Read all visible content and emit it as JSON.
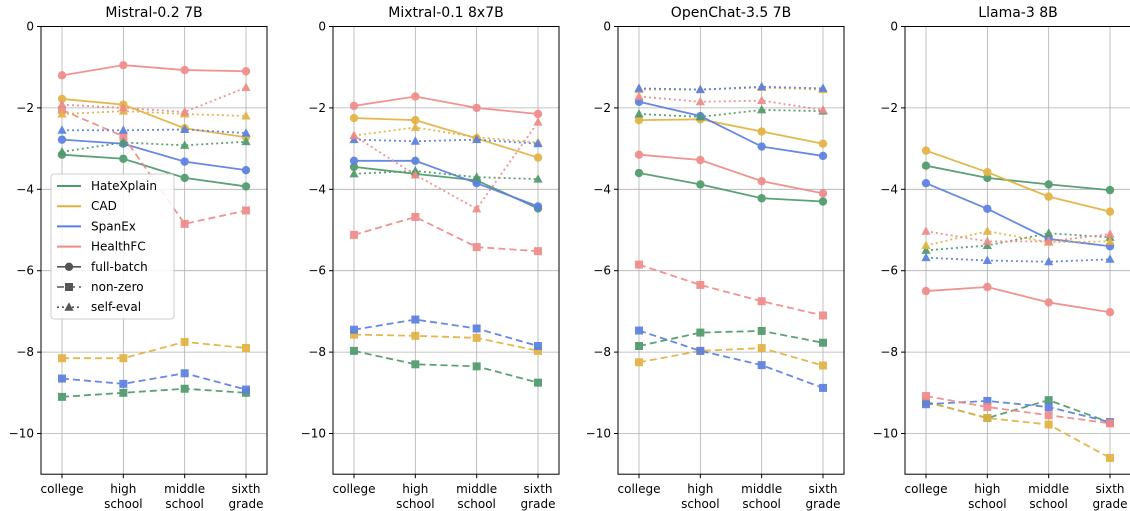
{
  "categories": [
    "college",
    "high\nschool",
    "middle\nschool",
    "sixth\ngrade"
  ],
  "series_colors": {
    "HateXplain": "#4f9a6b",
    "CAD": "#e2b23f",
    "SpanEx": "#5b7fe0",
    "HealthFC": "#ef8a88"
  },
  "legend": {
    "datasets": [
      "HateXplain",
      "CAD",
      "SpanEx",
      "HealthFC"
    ],
    "styles": [
      {
        "label": "full-batch",
        "marker": "circle",
        "dash": "solid"
      },
      {
        "label": "non-zero",
        "marker": "square",
        "dash": "dashed"
      },
      {
        "label": "self-eval",
        "marker": "triangle",
        "dash": "dotted"
      }
    ],
    "placement": "center-left of first panel"
  },
  "chart_data": [
    {
      "type": "line",
      "title": "Mistral-0.2 7B",
      "ylim": [
        -11,
        0
      ],
      "yticks": [
        0,
        -2,
        -4,
        -6,
        -8,
        -10
      ],
      "grid": true,
      "series": [
        {
          "dataset": "HateXplain",
          "style": "full-batch",
          "values": [
            -3.15,
            -3.25,
            -3.72,
            -3.93
          ]
        },
        {
          "dataset": "CAD",
          "style": "full-batch",
          "values": [
            -1.78,
            -1.92,
            -2.5,
            -2.72
          ]
        },
        {
          "dataset": "SpanEx",
          "style": "full-batch",
          "values": [
            -2.78,
            -2.88,
            -3.32,
            -3.53
          ]
        },
        {
          "dataset": "HealthFC",
          "style": "full-batch",
          "values": [
            -1.2,
            -0.95,
            -1.07,
            -1.1
          ]
        },
        {
          "dataset": "HateXplain",
          "style": "non-zero",
          "values": [
            -9.1,
            -9.0,
            -8.9,
            -9.0
          ]
        },
        {
          "dataset": "CAD",
          "style": "non-zero",
          "values": [
            -8.15,
            -8.15,
            -7.75,
            -7.9
          ]
        },
        {
          "dataset": "SpanEx",
          "style": "non-zero",
          "values": [
            -8.65,
            -8.78,
            -8.52,
            -8.92
          ]
        },
        {
          "dataset": "HealthFC",
          "style": "non-zero",
          "values": [
            -2.05,
            -2.7,
            -4.85,
            -4.52
          ]
        },
        {
          "dataset": "HateXplain",
          "style": "self-eval",
          "values": [
            -3.08,
            -2.85,
            -2.92,
            -2.83
          ]
        },
        {
          "dataset": "CAD",
          "style": "self-eval",
          "values": [
            -2.15,
            -2.08,
            -2.15,
            -2.2
          ]
        },
        {
          "dataset": "SpanEx",
          "style": "self-eval",
          "values": [
            -2.55,
            -2.55,
            -2.53,
            -2.62
          ]
        },
        {
          "dataset": "HealthFC",
          "style": "self-eval",
          "values": [
            -1.92,
            -2.0,
            -2.1,
            -1.5
          ]
        }
      ]
    },
    {
      "type": "line",
      "title": "Mixtral-0.1 8x7B",
      "ylim": [
        -11,
        0
      ],
      "yticks": [
        0,
        -2,
        -4,
        -6,
        -8,
        -10
      ],
      "grid": true,
      "series": [
        {
          "dataset": "HateXplain",
          "style": "full-batch",
          "values": [
            -3.45,
            -3.62,
            -3.78,
            -4.47
          ]
        },
        {
          "dataset": "CAD",
          "style": "full-batch",
          "values": [
            -2.25,
            -2.3,
            -2.75,
            -3.22
          ]
        },
        {
          "dataset": "SpanEx",
          "style": "full-batch",
          "values": [
            -3.3,
            -3.3,
            -3.85,
            -4.42
          ]
        },
        {
          "dataset": "HealthFC",
          "style": "full-batch",
          "values": [
            -1.95,
            -1.72,
            -2.0,
            -2.15
          ]
        },
        {
          "dataset": "HateXplain",
          "style": "non-zero",
          "values": [
            -7.97,
            -8.3,
            -8.35,
            -8.75
          ]
        },
        {
          "dataset": "CAD",
          "style": "non-zero",
          "values": [
            -7.57,
            -7.6,
            -7.65,
            -7.97
          ]
        },
        {
          "dataset": "SpanEx",
          "style": "non-zero",
          "values": [
            -7.45,
            -7.2,
            -7.42,
            -7.85
          ]
        },
        {
          "dataset": "HealthFC",
          "style": "non-zero",
          "values": [
            -5.12,
            -4.68,
            -5.42,
            -5.52
          ]
        },
        {
          "dataset": "HateXplain",
          "style": "self-eval",
          "values": [
            -3.62,
            -3.55,
            -3.7,
            -3.75
          ]
        },
        {
          "dataset": "CAD",
          "style": "self-eval",
          "values": [
            -2.68,
            -2.48,
            -2.72,
            -2.85
          ]
        },
        {
          "dataset": "SpanEx",
          "style": "self-eval",
          "values": [
            -2.78,
            -2.82,
            -2.78,
            -2.88
          ]
        },
        {
          "dataset": "HealthFC",
          "style": "self-eval",
          "values": [
            -2.68,
            -3.65,
            -4.48,
            -2.35
          ]
        }
      ]
    },
    {
      "type": "line",
      "title": "OpenChat-3.5 7B",
      "ylim": [
        -11,
        0
      ],
      "yticks": [
        0,
        -2,
        -4,
        -6,
        -8,
        -10
      ],
      "grid": true,
      "series": [
        {
          "dataset": "HateXplain",
          "style": "full-batch",
          "values": [
            -3.6,
            -3.88,
            -4.22,
            -4.3
          ]
        },
        {
          "dataset": "CAD",
          "style": "full-batch",
          "values": [
            -2.3,
            -2.28,
            -2.58,
            -2.88
          ]
        },
        {
          "dataset": "SpanEx",
          "style": "full-batch",
          "values": [
            -1.85,
            -2.2,
            -2.95,
            -3.18
          ]
        },
        {
          "dataset": "HealthFC",
          "style": "full-batch",
          "values": [
            -3.15,
            -3.28,
            -3.8,
            -4.1
          ]
        },
        {
          "dataset": "HateXplain",
          "style": "non-zero",
          "values": [
            -7.85,
            -7.52,
            -7.48,
            -7.77
          ]
        },
        {
          "dataset": "CAD",
          "style": "non-zero",
          "values": [
            -8.25,
            -7.97,
            -7.9,
            -8.33
          ]
        },
        {
          "dataset": "SpanEx",
          "style": "non-zero",
          "values": [
            -7.47,
            -7.97,
            -8.32,
            -8.88
          ]
        },
        {
          "dataset": "HealthFC",
          "style": "non-zero",
          "values": [
            -5.85,
            -6.35,
            -6.75,
            -7.1
          ]
        },
        {
          "dataset": "HateXplain",
          "style": "self-eval",
          "values": [
            -2.15,
            -2.22,
            -2.05,
            -2.08
          ]
        },
        {
          "dataset": "CAD",
          "style": "self-eval",
          "values": [
            -1.55,
            -1.55,
            -1.5,
            -1.55
          ]
        },
        {
          "dataset": "SpanEx",
          "style": "self-eval",
          "values": [
            -1.52,
            -1.55,
            -1.48,
            -1.52
          ]
        },
        {
          "dataset": "HealthFC",
          "style": "self-eval",
          "values": [
            -1.72,
            -1.85,
            -1.82,
            -2.05
          ]
        }
      ]
    },
    {
      "type": "line",
      "title": "Llama-3 8B",
      "ylim": [
        -11,
        0
      ],
      "yticks": [
        0,
        -2,
        -4,
        -6,
        -8,
        -10
      ],
      "grid": true,
      "series": [
        {
          "dataset": "HateXplain",
          "style": "full-batch",
          "values": [
            -3.42,
            -3.72,
            -3.88,
            -4.02
          ]
        },
        {
          "dataset": "CAD",
          "style": "full-batch",
          "values": [
            -3.05,
            -3.58,
            -4.18,
            -4.55
          ]
        },
        {
          "dataset": "SpanEx",
          "style": "full-batch",
          "values": [
            -3.85,
            -4.48,
            -5.22,
            -5.4
          ]
        },
        {
          "dataset": "HealthFC",
          "style": "full-batch",
          "values": [
            -6.5,
            -6.4,
            -6.78,
            -7.02
          ]
        },
        {
          "dataset": "HateXplain",
          "style": "non-zero",
          "values": [
            -9.22,
            -9.62,
            -9.18,
            -9.73
          ]
        },
        {
          "dataset": "CAD",
          "style": "non-zero",
          "values": [
            -9.22,
            -9.62,
            -9.78,
            -10.6
          ]
        },
        {
          "dataset": "SpanEx",
          "style": "non-zero",
          "values": [
            -9.28,
            -9.2,
            -9.35,
            -9.72
          ]
        },
        {
          "dataset": "HealthFC",
          "style": "non-zero",
          "values": [
            -9.08,
            -9.35,
            -9.55,
            -9.75
          ]
        },
        {
          "dataset": "HateXplain",
          "style": "self-eval",
          "values": [
            -5.5,
            -5.38,
            -5.08,
            -5.18
          ]
        },
        {
          "dataset": "CAD",
          "style": "self-eval",
          "values": [
            -5.38,
            -5.03,
            -5.3,
            -5.28
          ]
        },
        {
          "dataset": "SpanEx",
          "style": "self-eval",
          "values": [
            -5.68,
            -5.75,
            -5.78,
            -5.72
          ]
        },
        {
          "dataset": "HealthFC",
          "style": "self-eval",
          "values": [
            -5.03,
            -5.28,
            -5.28,
            -5.1
          ]
        }
      ]
    }
  ]
}
